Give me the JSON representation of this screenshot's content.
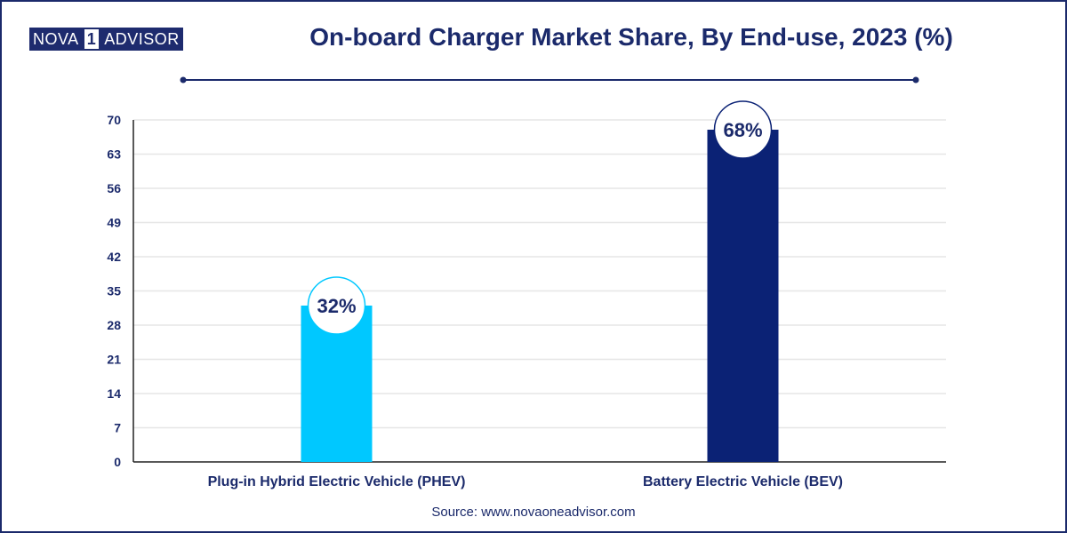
{
  "brand": {
    "part_a": "NOVA",
    "number": "1",
    "part_b": "ADVISOR"
  },
  "title": "On-board Charger Market Share, By End-use, 2023 (%)",
  "source": "Source: www.novaoneadvisor.com",
  "colors": {
    "navy": "#1b2a6b",
    "phev": "#00c8ff",
    "bev": "#0b2275",
    "grid": "#e6e6e6"
  },
  "chart_data": {
    "type": "bar",
    "categories": [
      "Plug-in Hybrid Electric Vehicle (PHEV)",
      "Battery Electric Vehicle (BEV)"
    ],
    "values": [
      32,
      68
    ],
    "data_labels": [
      "32%",
      "68%"
    ],
    "bar_colors": [
      "#00c8ff",
      "#0b2275"
    ],
    "yticks": [
      0,
      7,
      14,
      21,
      28,
      35,
      42,
      49,
      56,
      63,
      70
    ],
    "ylim": [
      0,
      70
    ],
    "xlabel": "",
    "ylabel": "",
    "grid": true,
    "legend": "none"
  }
}
